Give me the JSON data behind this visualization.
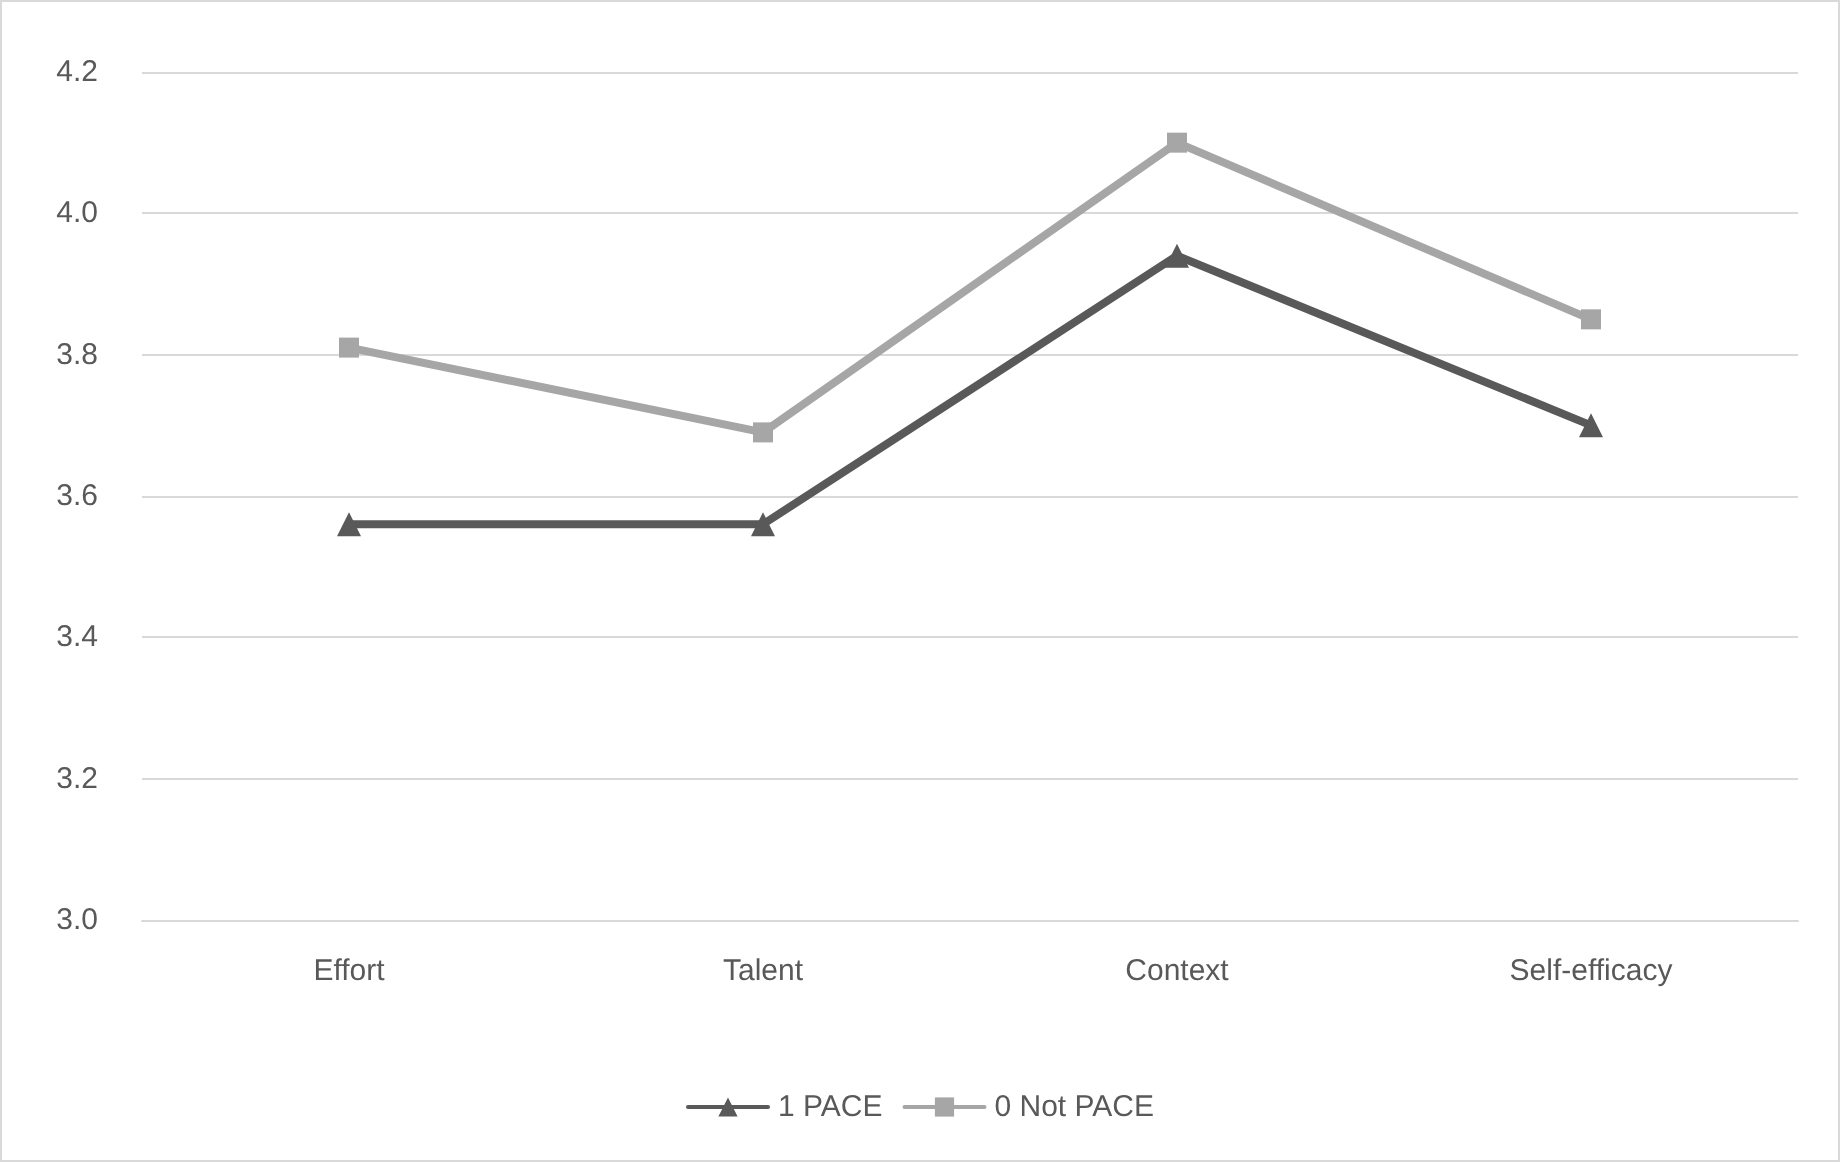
{
  "chart_data": {
    "type": "line",
    "categories": [
      "Effort",
      "Talent",
      "Context",
      "Self-efficacy"
    ],
    "series": [
      {
        "name": "1 PACE",
        "color": "#595959",
        "marker": "triangle",
        "values": [
          3.56,
          3.56,
          3.94,
          3.7
        ]
      },
      {
        "name": "0 Not PACE",
        "color": "#a6a6a6",
        "marker": "square",
        "values": [
          3.81,
          3.69,
          4.1,
          3.85
        ]
      }
    ],
    "ylim": [
      3.0,
      4.2
    ],
    "yticks": [
      {
        "value": 3,
        "label": "3.0"
      },
      3.2,
      3.4,
      3.6,
      3.8,
      {
        "value": 4,
        "label": "4.0"
      },
      4.2
    ],
    "grid": "y",
    "legend": "bottom",
    "line_style": "solid"
  }
}
